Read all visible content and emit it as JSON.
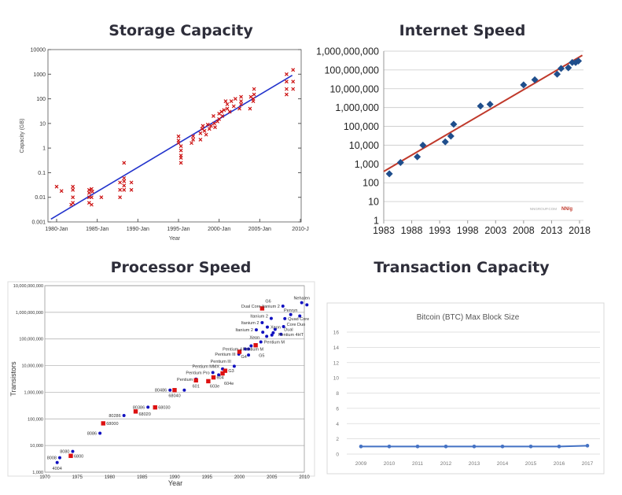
{
  "panel_titles": [
    "Storage Capacity",
    "Internet Speed",
    "Processor Speed",
    "Transaction Capacity"
  ],
  "chart_data": [
    {
      "type": "scatter",
      "title": "",
      "xlabel": "Year",
      "ylabel": "Capacity (GB)",
      "yscale": "log",
      "ylim": [
        0.001,
        10000
      ],
      "xlim": [
        1979,
        2010
      ],
      "grid": false,
      "yticks": [
        "0.001",
        "0.01",
        "0.1",
        "1",
        "10",
        "100",
        "1000",
        "10000"
      ],
      "xticks": [
        {
          "v": 1980,
          "label": "1980-Jan"
        },
        {
          "v": 1985,
          "label": "1985-Jan"
        },
        {
          "v": 1990,
          "label": "1990-Jan"
        },
        {
          "v": 1995,
          "label": "1995-Jan"
        },
        {
          "v": 2000,
          "label": "2000-Jan"
        },
        {
          "v": 2005,
          "label": "2005-Jan"
        },
        {
          "v": 2010,
          "label": "2010-J"
        }
      ],
      "marker_color": "#cc1111",
      "fit_color": "#2233cc",
      "fit": [
        [
          1979.3,
          0.0013
        ],
        [
          2009,
          900
        ]
      ],
      "points": [
        [
          1980,
          0.027
        ],
        [
          1980.6,
          0.018
        ],
        [
          1982,
          0.027
        ],
        [
          1982,
          0.02
        ],
        [
          1982,
          0.01
        ],
        [
          1982,
          0.006
        ],
        [
          1981.8,
          0.005
        ],
        [
          1984,
          0.02
        ],
        [
          1984,
          0.015
        ],
        [
          1984,
          0.01
        ],
        [
          1984,
          0.006
        ],
        [
          1984.3,
          0.022
        ],
        [
          1984.3,
          0.005
        ],
        [
          1984.3,
          0.01
        ],
        [
          1984.4,
          0.017
        ],
        [
          1985.5,
          0.01
        ],
        [
          1987.8,
          0.04
        ],
        [
          1987.8,
          0.02
        ],
        [
          1987.8,
          0.01
        ],
        [
          1988.3,
          0.25
        ],
        [
          1988.3,
          0.06
        ],
        [
          1988.3,
          0.045
        ],
        [
          1988.3,
          0.03
        ],
        [
          1988.3,
          0.02
        ],
        [
          1989.2,
          0.04
        ],
        [
          1989.2,
          0.02
        ],
        [
          1995,
          3
        ],
        [
          1995,
          2
        ],
        [
          1995,
          1.6
        ],
        [
          1995.3,
          1.2
        ],
        [
          1995.3,
          0.8
        ],
        [
          1995.3,
          0.5
        ],
        [
          1995.3,
          0.4
        ],
        [
          1995.3,
          0.25
        ],
        [
          1996.6,
          1.6
        ],
        [
          1996.8,
          2.2
        ],
        [
          1996.8,
          3
        ],
        [
          1997.7,
          2.2
        ],
        [
          1997.7,
          4
        ],
        [
          1997.9,
          6
        ],
        [
          1998,
          8
        ],
        [
          1998.2,
          5
        ],
        [
          1998.4,
          3.5
        ],
        [
          1998.6,
          9
        ],
        [
          1998.8,
          6
        ],
        [
          1999,
          8
        ],
        [
          1999.3,
          20
        ],
        [
          1999.4,
          10
        ],
        [
          1999.5,
          7
        ],
        [
          1999.8,
          12
        ],
        [
          2000,
          25
        ],
        [
          2000,
          15
        ],
        [
          2000.3,
          30
        ],
        [
          2000.4,
          20
        ],
        [
          2000.6,
          35
        ],
        [
          2000.8,
          80
        ],
        [
          2001,
          40
        ],
        [
          2001,
          60
        ],
        [
          2001.3,
          30
        ],
        [
          2001.5,
          80
        ],
        [
          2001.8,
          50
        ],
        [
          2002,
          100
        ],
        [
          2002.5,
          40
        ],
        [
          2002.7,
          120
        ],
        [
          2002.7,
          80
        ],
        [
          2002.7,
          60
        ],
        [
          2003.8,
          40
        ],
        [
          2003.9,
          120
        ],
        [
          2004.2,
          100
        ],
        [
          2004.3,
          250
        ],
        [
          2004.3,
          150
        ],
        [
          2004.2,
          80
        ],
        [
          2008.3,
          1000
        ],
        [
          2008.3,
          500
        ],
        [
          2008.3,
          250
        ],
        [
          2008.3,
          150
        ],
        [
          2009.1,
          1500
        ],
        [
          2009.1,
          500
        ],
        [
          2009.1,
          250
        ]
      ]
    },
    {
      "type": "scatter",
      "title": "",
      "xlabel": "",
      "ylabel": "",
      "yscale": "log",
      "ylim": [
        1,
        1000000000
      ],
      "xlim": [
        1983,
        2019
      ],
      "grid": true,
      "yticks": [
        "1",
        "10",
        "100",
        "1,000",
        "10,000",
        "100,000",
        "1,000,000",
        "10,000,000",
        "100,000,000",
        "1,000,000,000"
      ],
      "xticks": [
        "1983",
        "1988",
        "1993",
        "1998",
        "2003",
        "2008",
        "2013",
        "2018"
      ],
      "marker_color": "#1f4e8c",
      "fit_color": "#c0392b",
      "fit": [
        [
          1983,
          400
        ],
        [
          2018.5,
          600000000
        ]
      ],
      "watermark": "NNGROUP.COM",
      "logo": "NN/g",
      "points": [
        [
          1984,
          300
        ],
        [
          1986,
          1200
        ],
        [
          1989,
          2400
        ],
        [
          1990,
          10000
        ],
        [
          1994,
          15000
        ],
        [
          1995,
          30000
        ],
        [
          1995.5,
          130000
        ],
        [
          2000.3,
          1200000
        ],
        [
          2002,
          1500000
        ],
        [
          2008,
          16000000
        ],
        [
          2010,
          30000000
        ],
        [
          2014,
          60000000
        ],
        [
          2014.7,
          120000000
        ],
        [
          2016,
          130000000
        ],
        [
          2016.7,
          250000000
        ],
        [
          2017.3,
          250000000
        ],
        [
          2017.8,
          300000000
        ]
      ]
    },
    {
      "type": "scatter",
      "title": "",
      "xlabel": "Year",
      "ylabel": "Transistors",
      "yscale": "log",
      "ylim": [
        1000,
        10000000000
      ],
      "xlim": [
        1970,
        2010
      ],
      "grid": true,
      "yticks": [
        "1,000",
        "10,000",
        "100,000",
        "1,000,000",
        "10,000,000",
        "100,000,000",
        "1,000,000,000",
        "10,000,000,000"
      ],
      "xticks": [
        "1970",
        "1975",
        "1980",
        "1985",
        "1990",
        "1995",
        "2000",
        "2005",
        "2010"
      ],
      "series": [
        {
          "marker": "circle",
          "color": "#1010c0",
          "points": [
            {
              "x": 1971.9,
              "y": 2300,
              "label": "4004",
              "side": "below"
            },
            {
              "x": 1972.3,
              "y": 3500,
              "label": "8008",
              "side": "left"
            },
            {
              "x": 1974.3,
              "y": 6000,
              "label": "8080",
              "side": "left"
            },
            {
              "x": 1978.5,
              "y": 29000,
              "label": "8086",
              "side": "left"
            },
            {
              "x": 1982.2,
              "y": 134000,
              "label": "80286",
              "side": "left"
            },
            {
              "x": 1985.9,
              "y": 275000,
              "label": "80386",
              "side": "left"
            },
            {
              "x": 1989.3,
              "y": 1200000,
              "label": "80486",
              "side": "left"
            },
            {
              "x": 1991.5,
              "y": 1200000,
              "label": "",
              "side": "left"
            },
            {
              "x": 1993.3,
              "y": 3100000,
              "label": "Pentium",
              "side": "left"
            },
            {
              "x": 1995.9,
              "y": 5500000,
              "label": "Pentium Pro",
              "side": "left"
            },
            {
              "x": 1996.8,
              "y": 4500000,
              "label": "",
              "side": "left"
            },
            {
              "x": 1997.4,
              "y": 7500000,
              "label": "Pentium MMX",
              "side": "left"
            },
            {
              "x": 1999.2,
              "y": 9500000,
              "label": "Pentium III",
              "side": "left"
            },
            {
              "x": 1999.9,
              "y": 27000000,
              "label": "Pentium III",
              "side": "left"
            },
            {
              "x": 2000.9,
              "y": 42000000,
              "label": "Pentium 4",
              "side": "left"
            },
            {
              "x": 2001.4,
              "y": 42000000,
              "label": "",
              "side": "left"
            },
            {
              "x": 2001.4,
              "y": 25000000,
              "label": "",
              "side": "left"
            },
            {
              "x": 2001.8,
              "y": 55000000,
              "label": "",
              "side": "left"
            },
            {
              "x": 2003.3,
              "y": 77000000,
              "label": "Pentium M",
              "side": "right"
            },
            {
              "x": 2002.6,
              "y": 220000000,
              "label": "Itanium 2",
              "side": "left"
            },
            {
              "x": 2003.5,
              "y": 410000000,
              "label": "Itanium 2",
              "side": "left"
            },
            {
              "x": 2004.9,
              "y": 590000000,
              "label": "Itanium 2",
              "side": "left"
            },
            {
              "x": 2003.6,
              "y": 180000000,
              "label": "Xeon",
              "side": "left"
            },
            {
              "x": 2004.3,
              "y": 280000000,
              "label": "Xeon",
              "side": "right"
            },
            {
              "x": 2004.2,
              "y": 125000000,
              "label": "Pentium M",
              "side": "left"
            },
            {
              "x": 2005.0,
              "y": 140000000,
              "label": "",
              "side": "left"
            },
            {
              "x": 2005.2,
              "y": 170000000,
              "label": "",
              "side": "left"
            },
            {
              "x": 2005.5,
              "y": 230000000,
              "label": "Pentium 4HT",
              "side": "right"
            },
            {
              "x": 2006.4,
              "y": 150000000,
              "label": "Dual",
              "side": "right"
            },
            {
              "x": 2006.8,
              "y": 290000000,
              "label": "Core Duo",
              "side": "right"
            },
            {
              "x": 2007.0,
              "y": 580000000,
              "label": "Quad Core",
              "side": "right"
            },
            {
              "x": 2006.7,
              "y": 1700000000,
              "label": "Dual Core Itanium 2",
              "side": "left"
            },
            {
              "x": 2007.9,
              "y": 820000000,
              "label": "Penryn",
              "side": "above"
            },
            {
              "x": 2009.3,
              "y": 730000000,
              "label": "",
              "side": "left"
            },
            {
              "x": 2009.6,
              "y": 2300000000,
              "label": "Nehalen",
              "side": "above"
            },
            {
              "x": 2010.4,
              "y": 1900000000,
              "label": "",
              "side": "left"
            }
          ]
        },
        {
          "marker": "square",
          "color": "#dd1111",
          "points": [
            {
              "x": 1974,
              "y": 4100,
              "label": "6800",
              "side": "right"
            },
            {
              "x": 1979,
              "y": 68000,
              "label": "68000",
              "side": "right"
            },
            {
              "x": 1984,
              "y": 190000,
              "label": "68020",
              "side": "right"
            },
            {
              "x": 1987,
              "y": 270000,
              "label": "68030",
              "side": "right"
            },
            {
              "x": 1990,
              "y": 1200000,
              "label": "68040",
              "side": "below"
            },
            {
              "x": 1993.3,
              "y": 2800000,
              "label": "601",
              "side": "below"
            },
            {
              "x": 1995.2,
              "y": 2600000,
              "label": "603e",
              "side": "belowright"
            },
            {
              "x": 1996,
              "y": 3600000,
              "label": "604",
              "side": "right"
            },
            {
              "x": 1997.4,
              "y": 5100000,
              "label": "604e",
              "side": "belowright"
            },
            {
              "x": 1997.8,
              "y": 6400000,
              "label": "G3",
              "side": "right"
            },
            {
              "x": 2000,
              "y": 33000000,
              "label": "G4",
              "side": "belowright"
            },
            {
              "x": 2002.5,
              "y": 58000000,
              "label": "G5",
              "side": "right"
            },
            {
              "x": 2003.5,
              "y": 1400000000,
              "label": "G6",
              "side": "right"
            }
          ]
        }
      ]
    },
    {
      "type": "line",
      "title": "Bitcoin (BTC) Max Block Size",
      "xlabel": "",
      "ylabel": "",
      "ylim": [
        0,
        16
      ],
      "grid": true,
      "yticks": [
        "0",
        "2",
        "4",
        "6",
        "8",
        "10",
        "12",
        "14",
        "16"
      ],
      "categories": [
        "2009",
        "2010",
        "2011",
        "2012",
        "2013",
        "2014",
        "2015",
        "2016",
        "2017"
      ],
      "values": [
        1,
        1,
        1,
        1,
        1,
        1,
        1,
        1,
        1.1
      ],
      "color": "#4472c4"
    }
  ]
}
